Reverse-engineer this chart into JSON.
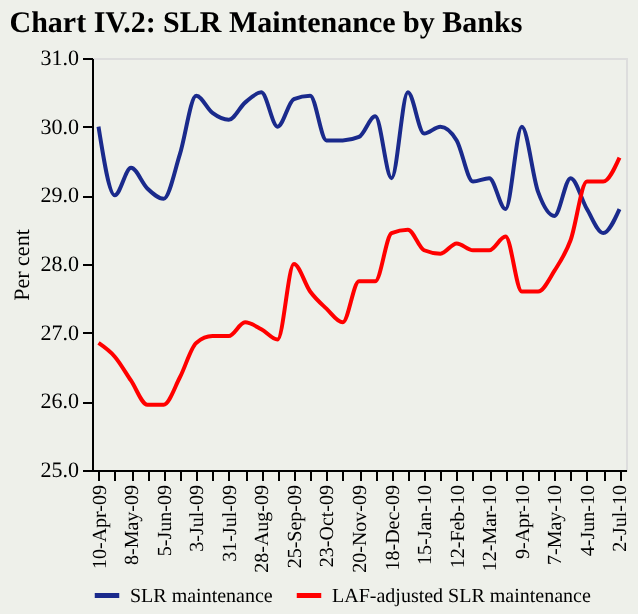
{
  "chart_data": {
    "type": "line",
    "title": "Chart IV.2: SLR Maintenance by Banks",
    "ylabel": "Per cent",
    "categories": [
      "10-Apr-09",
      null,
      "8-May-09",
      null,
      "5-Jun-09",
      null,
      "3-Jul-09",
      null,
      "31-Jul-09",
      null,
      "28-Aug-09",
      null,
      "25-Sep-09",
      null,
      "23-Oct-09",
      null,
      "20-Nov-09",
      null,
      "18-Dec-09",
      null,
      "15-Jan-10",
      null,
      "12-Feb-10",
      null,
      "12-Mar-10",
      null,
      "9-Apr-10",
      null,
      "7-May-10",
      null,
      "4-Jun-10",
      null,
      "2-Jul-10"
    ],
    "series": [
      {
        "name": "SLR maintenance",
        "color": "#1a2a8c",
        "values": [
          30.0,
          29.0,
          29.4,
          29.1,
          28.95,
          29.6,
          30.45,
          30.2,
          30.1,
          30.35,
          30.5,
          30.0,
          30.4,
          30.45,
          29.8,
          29.8,
          29.85,
          30.15,
          29.25,
          30.5,
          29.9,
          30.0,
          29.8,
          29.2,
          29.25,
          28.8,
          30.0,
          29.05,
          28.7,
          29.25,
          28.8,
          28.45,
          28.8
        ]
      },
      {
        "name": "LAF-adjusted SLR maintenance",
        "color": "#ff0000",
        "values": [
          26.85,
          26.65,
          26.3,
          25.95,
          25.95,
          26.35,
          26.85,
          26.95,
          26.95,
          27.15,
          27.05,
          26.9,
          28.0,
          27.6,
          27.35,
          27.15,
          27.75,
          27.75,
          28.45,
          28.5,
          28.2,
          28.15,
          28.3,
          28.2,
          28.2,
          28.4,
          27.6,
          27.6,
          27.9,
          28.35,
          29.2,
          29.2,
          29.55
        ]
      }
    ],
    "ylim": [
      25,
      31
    ],
    "yticks": [
      {
        "value": 25,
        "label": "25.0"
      },
      {
        "value": 26,
        "label": "26.0"
      },
      {
        "value": 27,
        "label": "27.0"
      },
      {
        "value": 28,
        "label": "28.0"
      },
      {
        "value": 29,
        "label": "29.0"
      },
      {
        "value": 30,
        "label": "30.0"
      },
      {
        "value": 31,
        "label": "31.0"
      }
    ],
    "grid": false,
    "legend": "bottom",
    "marker": "none",
    "line_style": "solid"
  }
}
